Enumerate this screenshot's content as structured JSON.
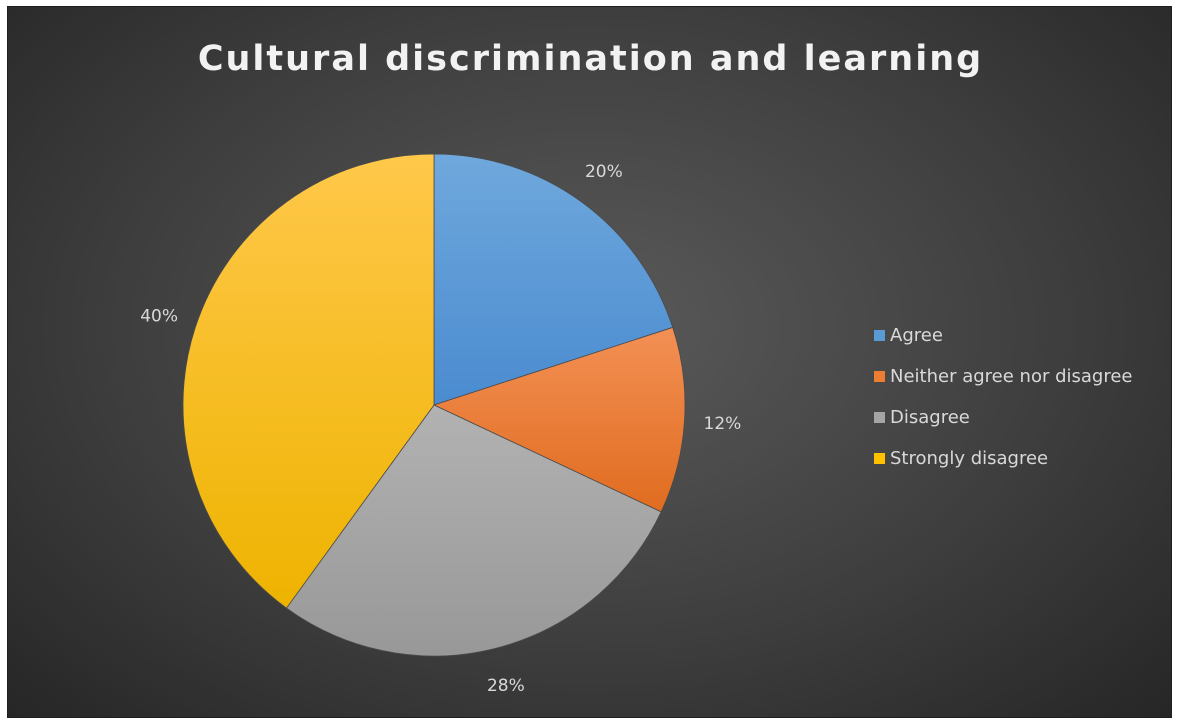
{
  "chart_data": {
    "type": "pie",
    "title": "Cultural discrimination and learning",
    "categories": [
      "Agree",
      "Neither agree nor disagree",
      "Disagree",
      "Strongly disagree"
    ],
    "values": [
      20,
      12,
      28,
      40
    ],
    "value_labels": [
      "20%",
      "12%",
      "28%",
      "40%"
    ],
    "colors": [
      "#5b9bd5",
      "#ed7d31",
      "#a5a5a5",
      "#ffc000"
    ],
    "legend_position": "right",
    "start_angle": "12 o'clock",
    "direction": "clockwise"
  }
}
